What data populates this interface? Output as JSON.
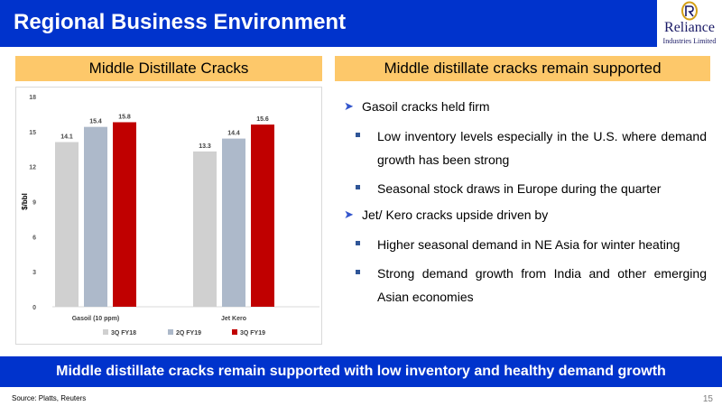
{
  "header": {
    "title": "Regional Business Environment"
  },
  "logo": {
    "name": "Reliance",
    "subtitle": "Industries Limited"
  },
  "left_panel": {
    "heading": "Middle Distillate Cracks"
  },
  "right_panel": {
    "heading": "Middle distillate cracks remain supported",
    "bullets": [
      {
        "text": "Gasoil cracks held firm",
        "sub": [
          "Low inventory levels especially in the U.S. where demand growth has been strong",
          "Seasonal stock draws in Europe during the quarter"
        ]
      },
      {
        "text": "Jet/ Kero cracks upside driven by",
        "sub": [
          "Higher seasonal demand in NE Asia for winter heating",
          "Strong demand growth from India and other emerging Asian economies"
        ]
      }
    ]
  },
  "chart_data": {
    "type": "bar",
    "categories": [
      "Gasoil (10 ppm)",
      "Jet Kero"
    ],
    "series": [
      {
        "name": "3Q FY18",
        "values": [
          14.1,
          13.3
        ],
        "color": "#d0d0d0"
      },
      {
        "name": "2Q FY19",
        "values": [
          15.4,
          14.4
        ],
        "color": "#adb9ca"
      },
      {
        "name": "3Q FY19",
        "values": [
          15.8,
          15.6
        ],
        "color": "#c00000"
      }
    ],
    "title": "",
    "xlabel": "",
    "ylabel": "$/bbl",
    "ylim": [
      0,
      18
    ],
    "yticks": [
      0,
      3,
      6,
      9,
      12,
      15,
      18
    ],
    "grid": false,
    "legend": "bottom",
    "data_labels": true
  },
  "banner": {
    "text": "Middle distillate cracks remain supported with low inventory and healthy demand growth"
  },
  "footer": {
    "source": "Source: Platts, Reuters",
    "page": "15"
  }
}
